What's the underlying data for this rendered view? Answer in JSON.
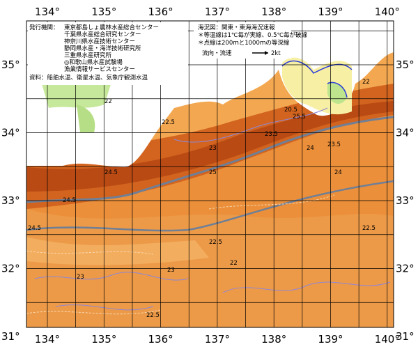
{
  "map": {
    "lon_labels": [
      "134°",
      "135°",
      "136°",
      "137°",
      "138°",
      "139°",
      "140°"
    ],
    "lat_labels": [
      "35°",
      "34°",
      "33°",
      "32°",
      "31°"
    ],
    "publisher": {
      "heading": "発行機関：",
      "lines": [
        "東京都島しょ農林水産総合センター",
        "千葉県水産総合研究センター",
        "神奈川県水産技術センター",
        "静岡県水産・海洋技術研究所",
        "三重県水産研究所",
        "◎和歌山県水産試験場",
        "漁業情報サービスセンター"
      ],
      "source": "資料：船舶水温、衛星水温、気象庁観測水温"
    },
    "legend": {
      "title": "海況図：関東・東海海況速報",
      "notes": [
        "＊等温線は1℃毎が実線、0.5℃毎が破線",
        "＊点線は200ｍと1000ｍの等深線"
      ],
      "current": "流向・流速",
      "speed": "2kt"
    },
    "isotherm_labels": [
      "22",
      "22.5",
      "23",
      "23.5",
      "24",
      "24.5",
      "25",
      "25.5",
      "24.5",
      "23",
      "22.5",
      "22",
      "23.5",
      "24",
      "22.5",
      "23",
      "22",
      "20.5",
      "22.5",
      "24.5"
    ]
  }
}
